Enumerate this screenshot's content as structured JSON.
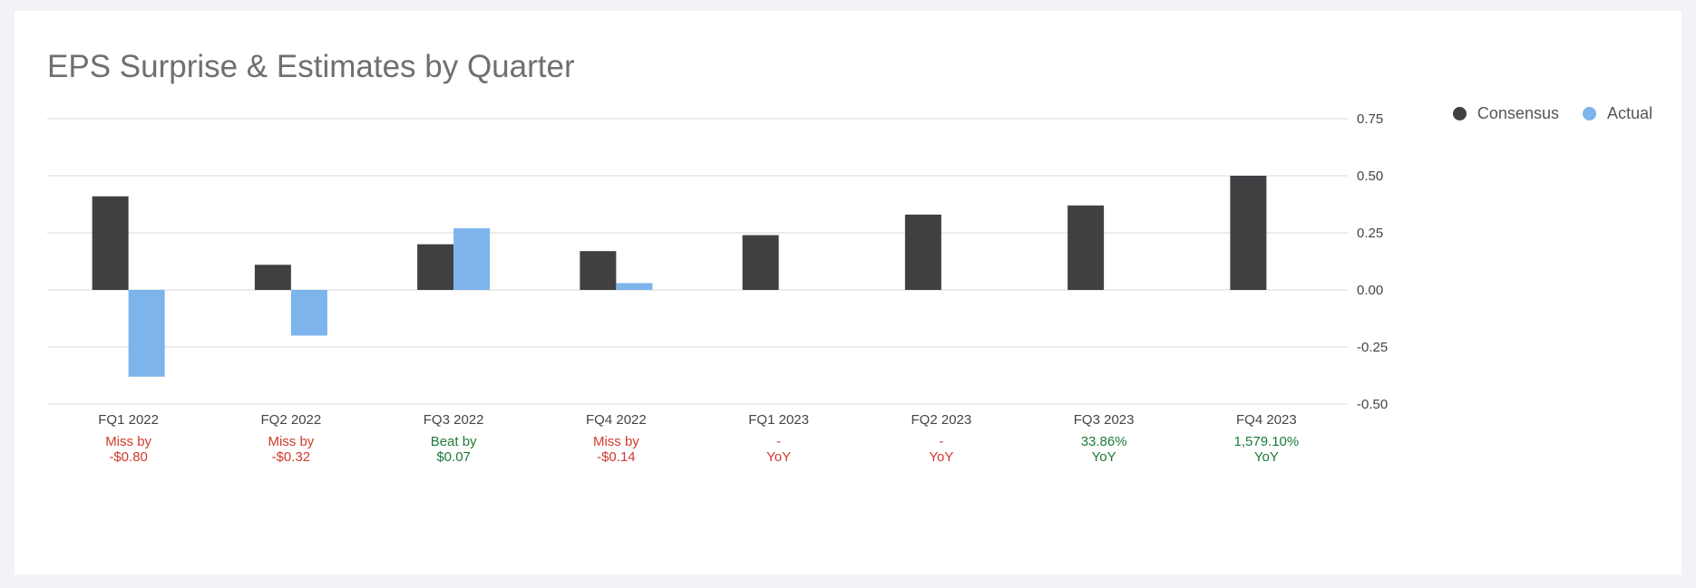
{
  "title": "EPS Surprise & Estimates by Quarter",
  "colors": {
    "consensus": "#404043",
    "actual": "#7db4eb",
    "miss": "#d03a2e",
    "beat": "#1d7a3a",
    "grid": "#d9d9d9",
    "text": "#444444"
  },
  "legend": [
    {
      "label": "Consensus",
      "color": "#404043"
    },
    {
      "label": "Actual",
      "color": "#7db4eb"
    }
  ],
  "chart_data": {
    "type": "bar",
    "categories": [
      "FQ1 2022",
      "FQ2 2022",
      "FQ3 2022",
      "FQ4 2022",
      "FQ1 2023",
      "FQ2 2023",
      "FQ3 2023",
      "FQ4 2023"
    ],
    "series": [
      {
        "name": "Consensus",
        "values": [
          0.41,
          0.11,
          0.2,
          0.17,
          0.24,
          0.33,
          0.37,
          0.5
        ]
      },
      {
        "name": "Actual",
        "values": [
          -0.38,
          -0.2,
          0.27,
          0.03,
          null,
          null,
          null,
          null
        ]
      }
    ],
    "ylim": [
      -0.5,
      0.75
    ],
    "yticks": [
      "0.75",
      "0.50",
      "0.25",
      "0.00",
      "-0.25",
      "-0.50"
    ],
    "ytick_values": [
      0.75,
      0.5,
      0.25,
      0,
      -0.25,
      -0.5
    ],
    "annotations": [
      {
        "line1": "Miss by",
        "line2": "-$0.80",
        "status": "miss"
      },
      {
        "line1": "Miss by",
        "line2": "-$0.32",
        "status": "miss"
      },
      {
        "line1": "Beat by",
        "line2": "$0.07",
        "status": "beat"
      },
      {
        "line1": "Miss by",
        "line2": "-$0.14",
        "status": "miss"
      },
      {
        "line1": "-",
        "line2": "YoY",
        "status": "miss"
      },
      {
        "line1": "-",
        "line2": "YoY",
        "status": "miss"
      },
      {
        "line1": "33.86%",
        "line2": "YoY",
        "status": "beat"
      },
      {
        "line1": "1,579.10%",
        "line2": "YoY",
        "status": "beat"
      }
    ],
    "grid": true,
    "legend_position": "top-right"
  }
}
